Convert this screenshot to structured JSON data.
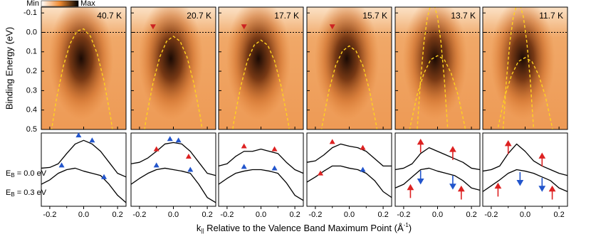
{
  "colorbar": {
    "min_label": "Min",
    "max_label": "Max"
  },
  "axes": {
    "ylabel": "Binding Energy (eV)",
    "xlabel": {
      "symbol": "k",
      "subscript": "||",
      "text": " Relative to the Valence Band Maximum Point (Å",
      "superscript": "-1",
      "tail": ")"
    },
    "edc_labels": [
      {
        "symbol": "E",
        "subscript": "B",
        "text": " = 0.0 eV"
      },
      {
        "symbol": "E",
        "subscript": "B",
        "text": " = 0.3 eV"
      }
    ],
    "xlim": [
      -0.25,
      0.25
    ],
    "xticks": [
      -0.2,
      {
        "value": 0,
        "label": "0.0"
      },
      0.2
    ],
    "xminor": [
      -0.1,
      0.1
    ],
    "ylim": [
      0.5,
      -0.13
    ],
    "yticks": [
      -0.1,
      {
        "value": 0,
        "label": "0.0"
      },
      0.1,
      0.2,
      0.3,
      0.4,
      0.5
    ],
    "mdc_ylim": [
      0,
      1
    ]
  },
  "chart_data": [
    {
      "type": "heatmap",
      "title": "40.7 K",
      "reference_line": 0,
      "bands": [
        {
          "color": "#ffd21f",
          "x": [
            -0.2,
            -0.16,
            -0.12,
            -0.08,
            -0.04,
            0,
            0.04,
            0.08,
            0.12,
            0.16,
            0.2
          ],
          "values": [
            0.558,
            0.34,
            0.174,
            0.058,
            -0.006,
            -0.018,
            0.02,
            0.11,
            0.25,
            0.442,
            0.686
          ]
        }
      ],
      "markers": [],
      "mdc": {
        "x": [
          -0.25,
          -0.2,
          -0.15,
          -0.1,
          -0.05,
          0,
          0.05,
          0.1,
          0.15,
          0.2,
          0.25
        ],
        "series": [
          {
            "values": [
              0.52,
              0.53,
              0.58,
              0.72,
              0.85,
              0.9,
              0.85,
              0.75,
              0.6,
              0.45,
              0.4
            ]
          },
          {
            "values": [
              0.3,
              0.36,
              0.45,
              0.5,
              0.52,
              0.48,
              0.45,
              0.42,
              0.3,
              0.15,
              0.05
            ]
          }
        ],
        "markers": [
          {
            "x": -0.03,
            "y": 0.97,
            "color": "#2255cc",
            "shape": "triangle-up"
          },
          {
            "x": 0.05,
            "y": 0.9,
            "color": "#2255cc",
            "shape": "triangle-up"
          },
          {
            "x": -0.13,
            "y": 0.56,
            "color": "#2255cc",
            "shape": "triangle-up"
          },
          {
            "x": 0.12,
            "y": 0.4,
            "color": "#2255cc",
            "shape": "triangle-up"
          }
        ]
      }
    },
    {
      "type": "heatmap",
      "title": "20.7 K",
      "reference_line": 0,
      "bands": [
        {
          "color": "#ffd21f",
          "x": [
            -0.2,
            -0.16,
            -0.12,
            -0.08,
            -0.04,
            0,
            0.04,
            0.08,
            0.12,
            0.16,
            0.2
          ],
          "values": [
            0.68,
            0.44,
            0.26,
            0.126,
            0.046,
            0.02,
            0.046,
            0.126,
            0.26,
            0.44,
            0.68
          ]
        }
      ],
      "markers": [
        {
          "x": -0.12,
          "y": -0.03,
          "color": "#cc2222",
          "shape": "triangle-down"
        }
      ],
      "mdc": {
        "x": [
          -0.25,
          -0.2,
          -0.15,
          -0.1,
          -0.05,
          0,
          0.05,
          0.1,
          0.15,
          0.2,
          0.25
        ],
        "series": [
          {
            "values": [
              0.58,
              0.6,
              0.66,
              0.75,
              0.85,
              0.87,
              0.85,
              0.75,
              0.6,
              0.45,
              0.42
            ]
          },
          {
            "values": [
              0.3,
              0.38,
              0.45,
              0.5,
              0.52,
              0.5,
              0.48,
              0.45,
              0.3,
              0.12,
              0.05
            ]
          }
        ],
        "markers": [
          {
            "x": -0.1,
            "y": 0.78,
            "color": "#dd2222",
            "shape": "triangle-up"
          },
          {
            "x": 0.09,
            "y": 0.68,
            "color": "#dd2222",
            "shape": "triangle-up"
          },
          {
            "x": -0.02,
            "y": 0.92,
            "color": "#2255cc",
            "shape": "triangle-up"
          },
          {
            "x": 0.03,
            "y": 0.9,
            "color": "#2255cc",
            "shape": "triangle-up"
          },
          {
            "x": -0.1,
            "y": 0.56,
            "color": "#2255cc",
            "shape": "triangle-up"
          },
          {
            "x": 0.1,
            "y": 0.5,
            "color": "#2255cc",
            "shape": "triangle-up"
          }
        ]
      }
    },
    {
      "type": "heatmap",
      "title": "17.7 K",
      "reference_line": 0,
      "bands": [
        {
          "color": "#ffd21f",
          "x": [
            -0.2,
            -0.16,
            -0.12,
            -0.08,
            -0.04,
            0,
            0.04,
            0.08,
            0.12,
            0.16,
            0.2
          ],
          "values": [
            0.7,
            0.46,
            0.28,
            0.146,
            0.066,
            0.04,
            0.066,
            0.146,
            0.28,
            0.46,
            0.7
          ]
        }
      ],
      "markers": [
        {
          "x": -0.1,
          "y": -0.03,
          "color": "#cc2222",
          "shape": "triangle-down"
        }
      ],
      "mdc": {
        "x": [
          -0.25,
          -0.2,
          -0.15,
          -0.1,
          -0.05,
          0,
          0.05,
          0.1,
          0.15,
          0.2,
          0.25
        ],
        "series": [
          {
            "values": [
              0.55,
              0.58,
              0.68,
              0.75,
              0.75,
              0.78,
              0.75,
              0.72,
              0.6,
              0.5,
              0.45
            ]
          },
          {
            "values": [
              0.3,
              0.38,
              0.45,
              0.48,
              0.5,
              0.5,
              0.48,
              0.45,
              0.32,
              0.15,
              0.08
            ]
          }
        ],
        "markers": [
          {
            "x": -0.1,
            "y": 0.82,
            "color": "#dd2222",
            "shape": "triangle-up"
          },
          {
            "x": 0.08,
            "y": 0.78,
            "color": "#dd2222",
            "shape": "triangle-up"
          },
          {
            "x": -0.1,
            "y": 0.54,
            "color": "#2255cc",
            "shape": "triangle-up"
          },
          {
            "x": 0.08,
            "y": 0.52,
            "color": "#2255cc",
            "shape": "triangle-up"
          }
        ]
      }
    },
    {
      "type": "heatmap",
      "title": "15.7 K",
      "reference_line": 0,
      "bands": [
        {
          "color": "#ffd21f",
          "x": [
            -0.2,
            -0.16,
            -0.12,
            -0.08,
            -0.04,
            0,
            0.04,
            0.08,
            0.12,
            0.16,
            0.2
          ],
          "values": [
            0.71,
            0.48,
            0.3,
            0.17,
            0.096,
            0.07,
            0.096,
            0.17,
            0.3,
            0.48,
            0.71
          ]
        }
      ],
      "markers": [
        {
          "x": -0.1,
          "y": -0.03,
          "color": "#cc2222",
          "shape": "triangle-down"
        }
      ],
      "mdc": {
        "x": [
          -0.25,
          -0.2,
          -0.15,
          -0.1,
          -0.05,
          0,
          0.05,
          0.1,
          0.15,
          0.2,
          0.25
        ],
        "series": [
          {
            "values": [
              0.6,
              0.62,
              0.7,
              0.8,
              0.85,
              0.82,
              0.8,
              0.75,
              0.65,
              0.55,
              0.55
            ]
          },
          {
            "values": [
              0.33,
              0.4,
              0.48,
              0.55,
              0.55,
              0.52,
              0.5,
              0.45,
              0.35,
              0.2,
              0.12
            ]
          }
        ],
        "markers": [
          {
            "x": -0.1,
            "y": 0.88,
            "color": "#dd2222",
            "shape": "triangle-up"
          },
          {
            "x": 0.08,
            "y": 0.8,
            "color": "#dd2222",
            "shape": "triangle-up"
          },
          {
            "x": -0.17,
            "y": 0.45,
            "color": "#dd2222",
            "shape": "triangle-up"
          },
          {
            "x": 0.08,
            "y": 0.5,
            "color": "#2255cc",
            "shape": "triangle-up"
          }
        ]
      }
    },
    {
      "type": "heatmap",
      "title": "13.7 K",
      "reference_line": 0,
      "bands": [
        {
          "color": "#ffd21f",
          "x": [
            -0.2,
            -0.16,
            -0.12,
            -0.08,
            -0.04,
            0,
            0.04,
            0.08,
            0.12,
            0.16,
            0.2
          ],
          "values": [
            0.68,
            0.48,
            0.32,
            0.21,
            0.14,
            0.12,
            0.14,
            0.21,
            0.32,
            0.48,
            0.68
          ]
        },
        {
          "color": "#ffd21f",
          "x": [
            -0.12,
            -0.1,
            -0.08,
            -0.06,
            -0.04,
            -0.02,
            0,
            0.02,
            0.04,
            0.06,
            0.08
          ],
          "values": [
            0.498,
            0.242,
            0.05,
            -0.078,
            -0.142,
            -0.142,
            -0.078,
            0.05,
            0.242,
            0.498,
            0.818
          ]
        }
      ],
      "markers": [],
      "mdc": {
        "x": [
          -0.25,
          -0.2,
          -0.15,
          -0.1,
          -0.05,
          0,
          0.05,
          0.1,
          0.15,
          0.2,
          0.25
        ],
        "series": [
          {
            "values": [
              0.5,
              0.52,
              0.58,
              0.72,
              0.8,
              0.75,
              0.7,
              0.65,
              0.6,
              0.52,
              0.5
            ]
          },
          {
            "values": [
              0.25,
              0.3,
              0.4,
              0.5,
              0.52,
              0.48,
              0.45,
              0.42,
              0.35,
              0.25,
              0.22
            ]
          }
        ],
        "markers": [
          {
            "x": -0.1,
            "y": 0.82,
            "color": "#dd2222",
            "shape": "arrow-up"
          },
          {
            "x": 0.09,
            "y": 0.72,
            "color": "#dd2222",
            "shape": "arrow-up"
          },
          {
            "x": -0.1,
            "y": 0.4,
            "color": "#2255cc",
            "shape": "arrow-down"
          },
          {
            "x": 0.09,
            "y": 0.33,
            "color": "#2255cc",
            "shape": "arrow-down"
          },
          {
            "x": -0.16,
            "y": 0.2,
            "color": "#dd2222",
            "shape": "arrow-up"
          },
          {
            "x": 0.14,
            "y": 0.18,
            "color": "#dd2222",
            "shape": "arrow-up"
          }
        ]
      }
    },
    {
      "type": "heatmap",
      "title": "11.7 K",
      "reference_line": 0,
      "bands": [
        {
          "color": "#ffd21f",
          "x": [
            -0.2,
            -0.16,
            -0.12,
            -0.08,
            -0.04,
            0,
            0.04,
            0.08,
            0.12,
            0.16,
            0.2
          ],
          "values": [
            0.69,
            0.49,
            0.33,
            0.22,
            0.15,
            0.13,
            0.15,
            0.22,
            0.33,
            0.49,
            0.69
          ]
        },
        {
          "color": "#ffd21f",
          "x": [
            -0.13,
            -0.11,
            -0.09,
            -0.07,
            -0.05,
            -0.03,
            -0.01,
            0.01,
            0.03,
            0.05,
            0.07
          ],
          "values": [
            0.498,
            0.242,
            0.05,
            -0.078,
            -0.142,
            -0.142,
            -0.078,
            0.05,
            0.242,
            0.498,
            0.818
          ]
        }
      ],
      "markers": [],
      "mdc": {
        "x": [
          -0.25,
          -0.2,
          -0.15,
          -0.1,
          -0.05,
          0,
          0.05,
          0.1,
          0.15,
          0.2,
          0.25
        ],
        "series": [
          {
            "values": [
              0.48,
              0.5,
              0.55,
              0.72,
              0.85,
              0.75,
              0.62,
              0.55,
              0.5,
              0.45,
              0.42
            ]
          },
          {
            "values": [
              0.2,
              0.28,
              0.36,
              0.45,
              0.5,
              0.48,
              0.45,
              0.4,
              0.35,
              0.25,
              0.2
            ]
          }
        ],
        "markers": [
          {
            "x": -0.1,
            "y": 0.8,
            "color": "#dd2222",
            "shape": "arrow-up"
          },
          {
            "x": 0.1,
            "y": 0.63,
            "color": "#dd2222",
            "shape": "arrow-up"
          },
          {
            "x": -0.03,
            "y": 0.38,
            "color": "#2255cc",
            "shape": "arrow-down"
          },
          {
            "x": 0.1,
            "y": 0.3,
            "color": "#2255cc",
            "shape": "arrow-down"
          },
          {
            "x": -0.16,
            "y": 0.22,
            "color": "#dd2222",
            "shape": "arrow-up"
          },
          {
            "x": 0.16,
            "y": 0.18,
            "color": "#dd2222",
            "shape": "arrow-up"
          }
        ]
      }
    }
  ]
}
